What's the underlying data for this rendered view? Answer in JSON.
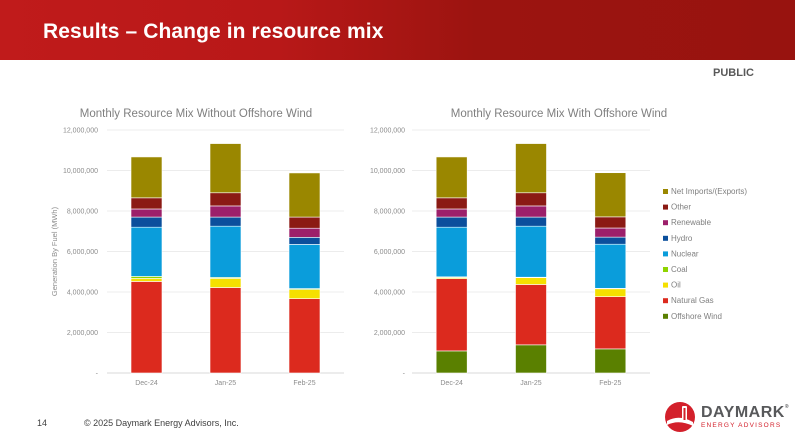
{
  "slide": {
    "title": "Results – Change in resource mix",
    "classification": "PUBLIC",
    "page_number": "14",
    "copyright": "© 2025 Daymark Energy Advisors, Inc.",
    "logo": {
      "name": "DAYMARK",
      "trademark": "®",
      "subtitle": "ENERGY ADVISORS",
      "icon": "daymark-logo-icon",
      "brand_color": "#d3202b"
    }
  },
  "legend": {
    "placement": "right",
    "items": [
      {
        "name": "Net Imports/(Exports)",
        "color": "#9a8700"
      },
      {
        "name": "Other",
        "color": "#8b1a14"
      },
      {
        "name": "Renewable",
        "color": "#9c1f6a"
      },
      {
        "name": "Hydro",
        "color": "#0b4f9c"
      },
      {
        "name": "Nuclear",
        "color": "#0a9ddb"
      },
      {
        "name": "Coal",
        "color": "#8fd400"
      },
      {
        "name": "Oil",
        "color": "#f5e000"
      },
      {
        "name": "Natural Gas",
        "color": "#dc2a1e"
      },
      {
        "name": "Offshore Wind",
        "color": "#5a8000"
      }
    ]
  },
  "chart_data": [
    {
      "type": "bar",
      "stacked": true,
      "title": "Monthly Resource Mix Without Offshore Wind",
      "xlabel": "",
      "ylabel": "Generation By Fuel (MWh)",
      "ylim": [
        0,
        12000000
      ],
      "yticks": [
        0,
        2000000,
        4000000,
        6000000,
        8000000,
        10000000,
        12000000
      ],
      "ytick_labels": [
        "-",
        "2,000,000",
        "4,000,000",
        "6,000,000",
        "8,000,000",
        "10,000,000",
        "12,000,000"
      ],
      "grid": true,
      "categories": [
        "Dec-24",
        "Jan-25",
        "Feb-25"
      ],
      "series": [
        {
          "name": "Offshore Wind",
          "color": "#5a8000",
          "values": [
            0,
            0,
            0
          ]
        },
        {
          "name": "Natural Gas",
          "color": "#dc2a1e",
          "values": [
            4520000,
            4220000,
            3670000
          ]
        },
        {
          "name": "Oil",
          "color": "#f5e000",
          "values": [
            150000,
            450000,
            450000
          ]
        },
        {
          "name": "Coal",
          "color": "#8fd400",
          "values": [
            100000,
            50000,
            50000
          ]
        },
        {
          "name": "Nuclear",
          "color": "#0a9ddb",
          "values": [
            2430000,
            2530000,
            2180000
          ]
        },
        {
          "name": "Hydro",
          "color": "#0b4f9c",
          "values": [
            500000,
            450000,
            350000
          ]
        },
        {
          "name": "Renewable",
          "color": "#9c1f6a",
          "values": [
            400000,
            550000,
            450000
          ]
        },
        {
          "name": "Other",
          "color": "#8b1a14",
          "values": [
            550000,
            650000,
            550000
          ]
        },
        {
          "name": "Net Imports/(Exports)",
          "color": "#9a8700",
          "values": [
            2020000,
            2430000,
            2180000
          ]
        }
      ]
    },
    {
      "type": "bar",
      "stacked": true,
      "title": "Monthly Resource Mix With Offshore Wind",
      "xlabel": "",
      "ylabel": "",
      "ylim": [
        0,
        12000000
      ],
      "yticks": [
        0,
        2000000,
        4000000,
        6000000,
        8000000,
        10000000,
        12000000
      ],
      "ytick_labels": [
        "-",
        "2,000,000",
        "4,000,000",
        "6,000,000",
        "8,000,000",
        "10,000,000",
        "12,000,000"
      ],
      "grid": true,
      "categories": [
        "Dec-24",
        "Jan-25",
        "Feb-25"
      ],
      "series": [
        {
          "name": "Offshore Wind",
          "color": "#5a8000",
          "values": [
            1090000,
            1390000,
            1190000
          ]
        },
        {
          "name": "Natural Gas",
          "color": "#dc2a1e",
          "values": [
            3570000,
            2980000,
            2580000
          ]
        },
        {
          "name": "Oil",
          "color": "#f5e000",
          "values": [
            60000,
            350000,
            400000
          ]
        },
        {
          "name": "Coal",
          "color": "#8fd400",
          "values": [
            30000,
            10000,
            10000
          ]
        },
        {
          "name": "Nuclear",
          "color": "#0a9ddb",
          "values": [
            2450000,
            2520000,
            2180000
          ]
        },
        {
          "name": "Hydro",
          "color": "#0b4f9c",
          "values": [
            500000,
            450000,
            350000
          ]
        },
        {
          "name": "Renewable",
          "color": "#9c1f6a",
          "values": [
            400000,
            550000,
            450000
          ]
        },
        {
          "name": "Other",
          "color": "#8b1a14",
          "values": [
            550000,
            650000,
            550000
          ]
        },
        {
          "name": "Net Imports/(Exports)",
          "color": "#9a8700",
          "values": [
            2020000,
            2430000,
            2180000
          ]
        }
      ]
    }
  ]
}
